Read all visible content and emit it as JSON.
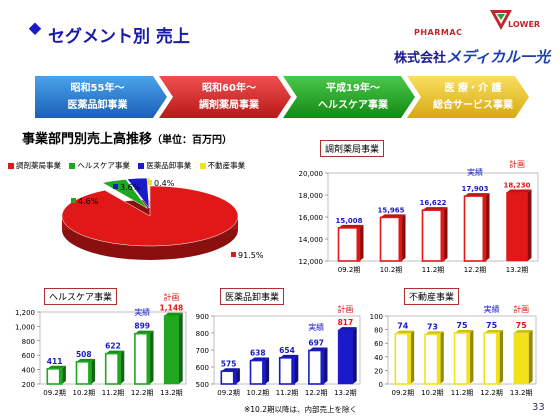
{
  "header": {
    "title": "セグメント別 売上",
    "logo_pharmac": "PHARMAC",
    "logo_flower": "LOWER",
    "company_prefix": "株式会社",
    "company_name": "メディカル一光",
    "page_number": "33"
  },
  "segments": [
    {
      "era": "昭和55年〜",
      "name": "医薬品卸事業",
      "color": "#2a7fd0"
    },
    {
      "era": "昭和60年〜",
      "name": "調剤薬局事業",
      "color": "#d42828"
    },
    {
      "era": "平成19年〜",
      "name": "ヘルスケア事業",
      "color": "#25a02a"
    },
    {
      "era": "医 療・介 護",
      "name": "総合サービス事業",
      "color": "#e8c21a"
    }
  ],
  "section_title": "事業部門別売上高推移",
  "section_unit": "（単位：百万円）",
  "footnote": "※10.2期以降は、内部売上を除く",
  "colors": {
    "red": "#e01818",
    "green": "#1fa81f",
    "blue": "#1a1ac8",
    "yellow": "#f2e21a",
    "actual_text": "#1a1ac8",
    "plan_text": "#e01818"
  },
  "chart_data": [
    {
      "type": "pie",
      "title": "",
      "legend": [
        "調剤薬局事業",
        "ヘルスケア事業",
        "医薬品卸事業",
        "不動産事業"
      ],
      "values": [
        91.5,
        4.6,
        3.6,
        0.4
      ],
      "labels": [
        "91.5%",
        "4.6%",
        "3.6%",
        "0.4%"
      ],
      "colors": [
        "#e01818",
        "#1fa81f",
        "#1a1ac8",
        "#f2e21a"
      ]
    },
    {
      "type": "bar",
      "title": "調剤薬局事業",
      "categories": [
        "09.2期",
        "10.2期",
        "11.2期",
        "12.2期",
        "13.2期"
      ],
      "values": [
        15008,
        15965,
        16622,
        17903,
        18230
      ],
      "value_labels": [
        "15,008",
        "15,965",
        "16,622",
        "17,903",
        "18,230"
      ],
      "ylim": [
        12000,
        20000
      ],
      "yticks": [
        "12,000",
        "14,000",
        "16,000",
        "18,000",
        "20,000"
      ],
      "actual_label": "実績",
      "plan_label": "計画",
      "color": "#e01818"
    },
    {
      "type": "bar",
      "title": "ヘルスケア事業",
      "categories": [
        "09.2期",
        "10.2期",
        "11.2期",
        "12.2期",
        "13.2期"
      ],
      "values": [
        411,
        508,
        622,
        899,
        1148
      ],
      "value_labels": [
        "411",
        "508",
        "622",
        "899",
        "1,148"
      ],
      "ylim": [
        200,
        1200
      ],
      "yticks": [
        "200",
        "400",
        "600",
        "800",
        "1,000",
        "1,200"
      ],
      "actual_label": "実績",
      "plan_label": "計画",
      "color": "#1fa81f"
    },
    {
      "type": "bar",
      "title": "医薬品卸事業",
      "categories": [
        "09.2期",
        "10.2期",
        "11.2期",
        "12.2期",
        "13.2期"
      ],
      "values": [
        575,
        638,
        654,
        697,
        817
      ],
      "value_labels": [
        "575",
        "638",
        "654",
        "697",
        "817"
      ],
      "ylim": [
        500,
        900
      ],
      "yticks": [
        "500",
        "600",
        "700",
        "800",
        "900"
      ],
      "actual_label": "実績",
      "plan_label": "計画",
      "color": "#1a1ac8"
    },
    {
      "type": "bar",
      "title": "不動産事業",
      "categories": [
        "09.2期",
        "10.2期",
        "11.2期",
        "12.2期",
        "13.2期"
      ],
      "values": [
        74,
        73,
        75,
        75,
        75
      ],
      "value_labels": [
        "74",
        "73",
        "75",
        "75",
        "75"
      ],
      "ylim": [
        0,
        100
      ],
      "yticks": [
        "0",
        "20",
        "40",
        "60",
        "80",
        "100"
      ],
      "actual_label": "実績",
      "plan_label": "計画",
      "color": "#f2e21a"
    }
  ]
}
